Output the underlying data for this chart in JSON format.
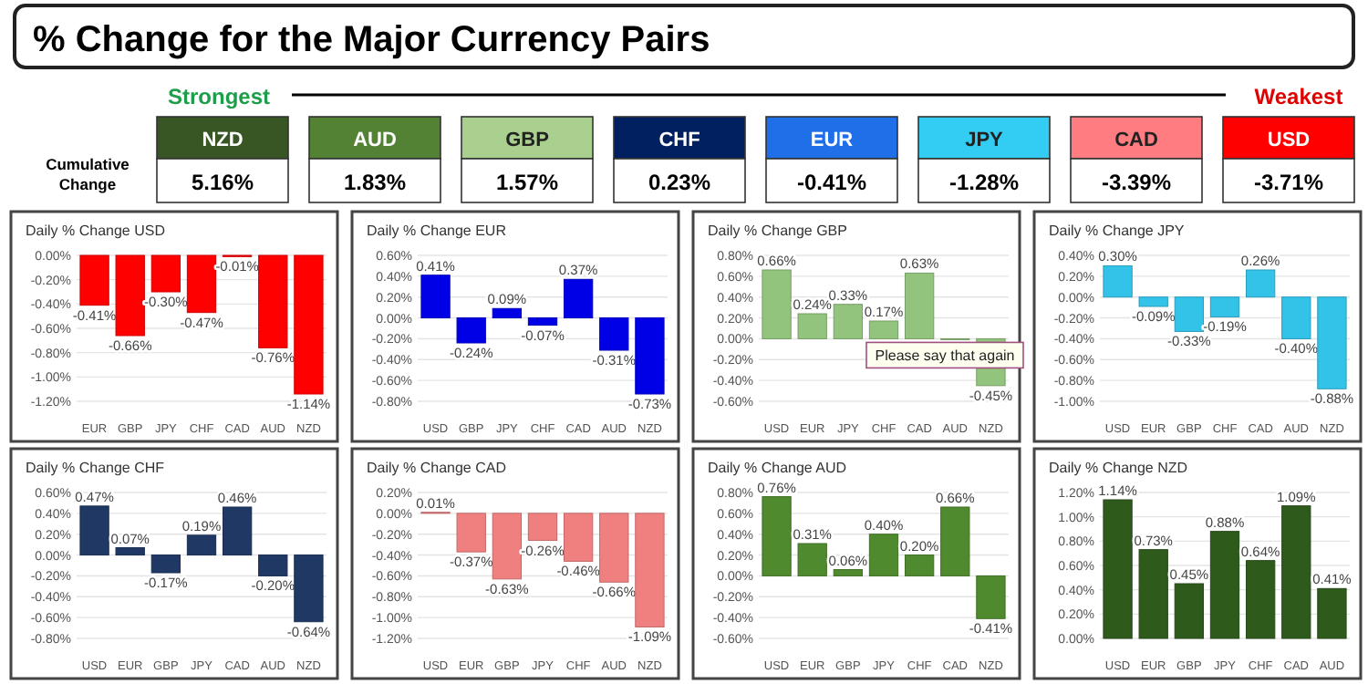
{
  "chart_data": [
    {
      "type": "other",
      "title": "% Change for the Major Currency Pairs",
      "ylabel": "Cumulative Change",
      "annotations": [
        "Strongest",
        "Weakest"
      ],
      "categories": [
        "NZD",
        "AUD",
        "GBP",
        "CHF",
        "EUR",
        "JPY",
        "CAD",
        "USD"
      ],
      "value_labels": [
        "5.16%",
        "1.83%",
        "1.57%",
        "0.23%",
        "-0.41%",
        "-1.28%",
        "-3.39%",
        "-3.71%"
      ],
      "colors": [
        "#375623",
        "#548235",
        "#a9d08e",
        "#002060",
        "#1f6fe8",
        "#33ccf2",
        "#ff7c80",
        "#ff0000"
      ]
    },
    {
      "type": "bar",
      "title": "Daily % Change USD",
      "categories": [
        "EUR",
        "GBP",
        "JPY",
        "CHF",
        "CAD",
        "AUD",
        "NZD"
      ],
      "values": [
        -0.41,
        -0.66,
        -0.3,
        -0.47,
        -0.01,
        -0.76,
        -1.14
      ],
      "value_labels": [
        "-0.41%",
        "-0.66%",
        "-0.30%",
        "-0.47%",
        "-0.01%",
        "-0.76%",
        "-1.14%"
      ],
      "color": "#ff0000",
      "ylim": [
        -1.2,
        0
      ],
      "yticks": [
        {
          "value": -1.2,
          "label": "-1.20%"
        },
        {
          "value": -1,
          "label": "-1.00%"
        },
        {
          "value": -0.8,
          "label": "-0.80%"
        },
        {
          "value": -0.6,
          "label": "-0.60%"
        },
        {
          "value": -0.4,
          "label": "-0.40%"
        },
        {
          "value": -0.2,
          "label": "-0.20%"
        },
        {
          "value": 0,
          "label": "0.00%"
        }
      ],
      "grid": "y"
    },
    {
      "type": "bar",
      "title": "Daily % Change EUR",
      "categories": [
        "USD",
        "GBP",
        "JPY",
        "CHF",
        "CAD",
        "AUD",
        "NZD"
      ],
      "values": [
        0.41,
        -0.24,
        0.09,
        -0.07,
        0.37,
        -0.31,
        -0.73
      ],
      "value_labels": [
        "0.41%",
        "-0.24%",
        "0.09%",
        "-0.07%",
        "0.37%",
        "-0.31%",
        "-0.73%"
      ],
      "color": "#0000e6",
      "ylim": [
        -0.8,
        0.6
      ],
      "yticks": [
        {
          "value": -0.8,
          "label": "-0.80%"
        },
        {
          "value": -0.6,
          "label": "-0.60%"
        },
        {
          "value": -0.4,
          "label": "-0.40%"
        },
        {
          "value": -0.2,
          "label": "-0.20%"
        },
        {
          "value": 0,
          "label": "0.00%"
        },
        {
          "value": 0.2,
          "label": "0.20%"
        },
        {
          "value": 0.4,
          "label": "0.40%"
        },
        {
          "value": 0.6,
          "label": "0.60%"
        }
      ],
      "grid": "y"
    },
    {
      "type": "bar",
      "title": "Daily % Change GBP",
      "categories": [
        "USD",
        "EUR",
        "JPY",
        "CHF",
        "CAD",
        "AUD",
        "NZD"
      ],
      "values": [
        0.66,
        0.24,
        0.33,
        0.17,
        0.63,
        0,
        -0.45
      ],
      "value_labels": [
        "0.66%",
        "0.24%",
        "0.33%",
        "0.17%",
        "0.63%",
        null,
        "-0.45%"
      ],
      "color": "#93c47d",
      "ylim": [
        -0.6,
        0.8
      ],
      "yticks": [
        {
          "value": -0.6,
          "label": "-0.60%"
        },
        {
          "value": -0.4,
          "label": "-0.40%"
        },
        {
          "value": -0.2,
          "label": "-0.20%"
        },
        {
          "value": 0,
          "label": "0.00%"
        },
        {
          "value": 0.2,
          "label": "0.20%"
        },
        {
          "value": 0.4,
          "label": "0.40%"
        },
        {
          "value": 0.6,
          "label": "0.60%"
        },
        {
          "value": 0.8,
          "label": "0.80%"
        }
      ],
      "grid": "y",
      "annotations": [
        "Please say that again"
      ]
    },
    {
      "type": "bar",
      "title": "Daily % Change JPY",
      "categories": [
        "USD",
        "EUR",
        "GBP",
        "CHF",
        "CAD",
        "AUD",
        "NZD"
      ],
      "values": [
        0.3,
        -0.09,
        -0.33,
        -0.19,
        0.26,
        -0.4,
        -0.88
      ],
      "value_labels": [
        "0.30%",
        "-0.09%",
        "-0.33%",
        "-0.19%",
        "0.26%",
        "-0.40%",
        "-0.88%"
      ],
      "color": "#33c3e8",
      "ylim": [
        -1,
        0.4
      ],
      "yticks": [
        {
          "value": -1,
          "label": "-1.00%"
        },
        {
          "value": -0.8,
          "label": "-0.80%"
        },
        {
          "value": -0.6,
          "label": "-0.60%"
        },
        {
          "value": -0.4,
          "label": "-0.40%"
        },
        {
          "value": -0.2,
          "label": "-0.20%"
        },
        {
          "value": 0,
          "label": "0.00%"
        },
        {
          "value": 0.2,
          "label": "0.20%"
        },
        {
          "value": 0.4,
          "label": "0.40%"
        }
      ],
      "grid": "y"
    },
    {
      "type": "bar",
      "title": "Daily % Change CHF",
      "categories": [
        "USD",
        "EUR",
        "GBP",
        "JPY",
        "CAD",
        "AUD",
        "NZD"
      ],
      "values": [
        0.47,
        0.07,
        -0.17,
        0.19,
        0.46,
        -0.2,
        -0.64
      ],
      "value_labels": [
        "0.47%",
        "0.07%",
        "-0.17%",
        "0.19%",
        "0.46%",
        "-0.20%",
        "-0.64%"
      ],
      "color": "#1f3864",
      "ylim": [
        -0.8,
        0.6
      ],
      "yticks": [
        {
          "value": -0.8,
          "label": "-0.80%"
        },
        {
          "value": -0.6,
          "label": "-0.60%"
        },
        {
          "value": -0.4,
          "label": "-0.40%"
        },
        {
          "value": -0.2,
          "label": "-0.20%"
        },
        {
          "value": 0,
          "label": "0.00%"
        },
        {
          "value": 0.2,
          "label": "0.20%"
        },
        {
          "value": 0.4,
          "label": "0.40%"
        },
        {
          "value": 0.6,
          "label": "0.60%"
        }
      ],
      "grid": "y"
    },
    {
      "type": "bar",
      "title": "Daily % Change CAD",
      "categories": [
        "USD",
        "EUR",
        "GBP",
        "JPY",
        "CHF",
        "AUD",
        "NZD"
      ],
      "values": [
        0.01,
        -0.37,
        -0.63,
        -0.26,
        -0.46,
        -0.66,
        -1.09
      ],
      "value_labels": [
        "0.01%",
        "-0.37%",
        "-0.63%",
        "-0.26%",
        "-0.46%",
        "-0.66%",
        "-1.09%"
      ],
      "color": "#f08080",
      "ylim": [
        -1.2,
        0.2
      ],
      "yticks": [
        {
          "value": -1.2,
          "label": "-1.20%"
        },
        {
          "value": -1,
          "label": "-1.00%"
        },
        {
          "value": -0.8,
          "label": "-0.80%"
        },
        {
          "value": -0.6,
          "label": "-0.60%"
        },
        {
          "value": -0.4,
          "label": "-0.40%"
        },
        {
          "value": -0.2,
          "label": "-0.20%"
        },
        {
          "value": 0,
          "label": "0.00%"
        },
        {
          "value": 0.2,
          "label": "0.20%"
        }
      ],
      "grid": "y"
    },
    {
      "type": "bar",
      "title": "Daily % Change AUD",
      "categories": [
        "USD",
        "EUR",
        "GBP",
        "JPY",
        "CHF",
        "CAD",
        "NZD"
      ],
      "values": [
        0.76,
        0.31,
        0.06,
        0.4,
        0.2,
        0.66,
        -0.41
      ],
      "value_labels": [
        "0.76%",
        "0.31%",
        "0.06%",
        "0.40%",
        "0.20%",
        "0.66%",
        "-0.41%"
      ],
      "color": "#4f8a2e",
      "ylim": [
        -0.6,
        0.8
      ],
      "yticks": [
        {
          "value": -0.6,
          "label": "-0.60%"
        },
        {
          "value": -0.4,
          "label": "-0.40%"
        },
        {
          "value": -0.2,
          "label": "-0.20%"
        },
        {
          "value": 0,
          "label": "0.00%"
        },
        {
          "value": 0.2,
          "label": "0.20%"
        },
        {
          "value": 0.4,
          "label": "0.40%"
        },
        {
          "value": 0.6,
          "label": "0.60%"
        },
        {
          "value": 0.8,
          "label": "0.80%"
        }
      ],
      "grid": "y"
    },
    {
      "type": "bar",
      "title": "Daily % Change NZD",
      "categories": [
        "USD",
        "EUR",
        "GBP",
        "JPY",
        "CHF",
        "CAD",
        "AUD"
      ],
      "values": [
        1.14,
        0.73,
        0.45,
        0.88,
        0.64,
        1.09,
        0.41
      ],
      "value_labels": [
        "1.14%",
        "0.73%",
        "0.45%",
        "0.88%",
        "0.64%",
        "1.09%",
        "0.41%"
      ],
      "color": "#2e5a1c",
      "ylim": [
        0,
        1.2
      ],
      "yticks": [
        {
          "value": 0,
          "label": "0.00%"
        },
        {
          "value": 0.2,
          "label": "0.20%"
        },
        {
          "value": 0.4,
          "label": "0.40%"
        },
        {
          "value": 0.6,
          "label": "0.60%"
        },
        {
          "value": 0.8,
          "label": "0.80%"
        },
        {
          "value": 1,
          "label": "1.00%"
        },
        {
          "value": 1.2,
          "label": "1.20%"
        }
      ],
      "grid": "y"
    }
  ]
}
